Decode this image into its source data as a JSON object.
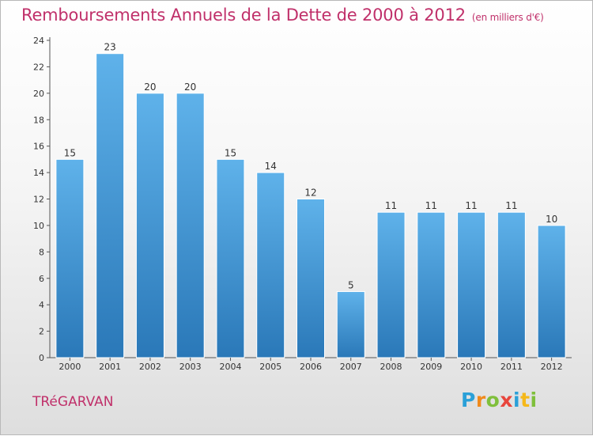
{
  "title": "Remboursements Annuels de la Dette de 2000 à 2012",
  "unit_note": "(en milliers d'€)",
  "commune": "TRéGARVAN",
  "logo": {
    "text": "Proxiti",
    "colors": [
      "#2aa0d8",
      "#f08a1c",
      "#7fbf3b",
      "#e8453c",
      "#2aa0d8",
      "#f5b81a",
      "#7fbf3b"
    ]
  },
  "colors": {
    "bar_top": "#5fb2ea",
    "bar_bottom": "#2a78b8",
    "accent": "#c0306a"
  },
  "chart_data": {
    "type": "bar",
    "categories": [
      "2000",
      "2001",
      "2002",
      "2003",
      "2004",
      "2005",
      "2006",
      "2007",
      "2008",
      "2009",
      "2010",
      "2011",
      "2012"
    ],
    "values": [
      15,
      23,
      20,
      20,
      15,
      14,
      12,
      5,
      11,
      11,
      11,
      11,
      10
    ],
    "title": "Remboursements Annuels de la Dette de 2000 à 2012",
    "xlabel": "",
    "ylabel": "",
    "ylim": [
      0,
      24
    ],
    "yticks": [
      0,
      2,
      4,
      6,
      8,
      10,
      12,
      14,
      16,
      18,
      20,
      22,
      24
    ],
    "grid": false,
    "legend": "none"
  }
}
